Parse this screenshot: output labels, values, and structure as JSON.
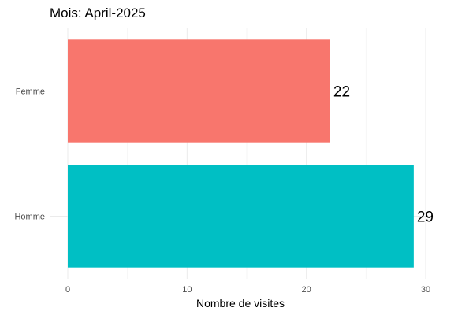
{
  "chart_data": {
    "type": "bar",
    "orientation": "horizontal",
    "title": "Mois: April-2025",
    "xlabel": "Nombre de visites",
    "ylabel": "",
    "categories": [
      "Femme",
      "Homme"
    ],
    "values": [
      22,
      29
    ],
    "data_labels": [
      "22",
      "29"
    ],
    "colors": [
      "#F8766D",
      "#00BFC4"
    ],
    "xlim": [
      0,
      30
    ],
    "x_ticks": [
      0,
      10,
      20,
      30
    ],
    "x_tick_labels": [
      "0",
      "10",
      "20",
      "30"
    ],
    "grid": true,
    "legend": "none"
  }
}
